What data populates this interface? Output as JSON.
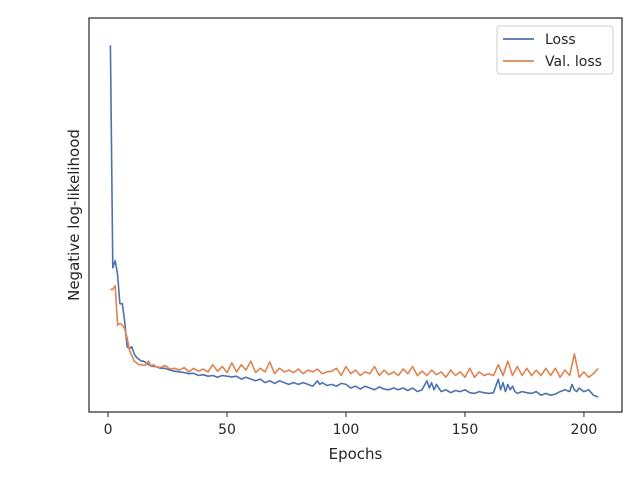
{
  "chart_data": {
    "type": "line",
    "title": "",
    "xlabel": "Epochs",
    "ylabel": "Negative log-likelihood",
    "xlim": [
      -8,
      216
    ],
    "ylim": [
      0.0,
      1.0
    ],
    "y_ticks_shown": false,
    "x_ticks": [
      0,
      50,
      100,
      150,
      200
    ],
    "grid": false,
    "legend_position": "top-right",
    "series": [
      {
        "name": "Loss",
        "color": "#4c72b0",
        "x": [
          1,
          2,
          3,
          4,
          5,
          6,
          7,
          8,
          9,
          10,
          11,
          12,
          13,
          14,
          15,
          16,
          17,
          18,
          19,
          20,
          22,
          24,
          26,
          28,
          30,
          32,
          34,
          36,
          38,
          40,
          42,
          44,
          46,
          48,
          50,
          52,
          54,
          56,
          58,
          60,
          62,
          64,
          66,
          68,
          70,
          72,
          74,
          76,
          78,
          80,
          82,
          84,
          86,
          88,
          89,
          90,
          92,
          94,
          96,
          98,
          100,
          102,
          104,
          106,
          108,
          110,
          112,
          114,
          116,
          118,
          120,
          122,
          124,
          126,
          128,
          130,
          132,
          134,
          135,
          136,
          137,
          138,
          140,
          142,
          144,
          146,
          148,
          150,
          152,
          154,
          156,
          158,
          160,
          162,
          164,
          165,
          166,
          167,
          168,
          169,
          170,
          171,
          172,
          174,
          176,
          178,
          180,
          182,
          184,
          186,
          188,
          190,
          192,
          194,
          195,
          196,
          197,
          198,
          200,
          202,
          204,
          206
        ],
        "y": [
          0.98,
          0.36,
          0.38,
          0.34,
          0.26,
          0.26,
          0.21,
          0.14,
          0.135,
          0.14,
          0.12,
          0.11,
          0.105,
          0.1,
          0.1,
          0.095,
          0.09,
          0.088,
          0.085,
          0.085,
          0.08,
          0.08,
          0.075,
          0.072,
          0.07,
          0.068,
          0.065,
          0.066,
          0.06,
          0.062,
          0.058,
          0.06,
          0.055,
          0.06,
          0.058,
          0.056,
          0.058,
          0.05,
          0.055,
          0.05,
          0.045,
          0.05,
          0.04,
          0.045,
          0.038,
          0.045,
          0.04,
          0.035,
          0.04,
          0.035,
          0.04,
          0.035,
          0.03,
          0.045,
          0.035,
          0.04,
          0.032,
          0.035,
          0.03,
          0.038,
          0.035,
          0.025,
          0.03,
          0.022,
          0.03,
          0.025,
          0.02,
          0.028,
          0.022,
          0.02,
          0.025,
          0.02,
          0.025,
          0.018,
          0.025,
          0.015,
          0.02,
          0.045,
          0.025,
          0.04,
          0.02,
          0.035,
          0.015,
          0.02,
          0.012,
          0.018,
          0.015,
          0.02,
          0.012,
          0.01,
          0.015,
          0.012,
          0.01,
          0.012,
          0.05,
          0.02,
          0.04,
          0.015,
          0.035,
          0.02,
          0.03,
          0.015,
          0.01,
          0.015,
          0.012,
          0.01,
          0.015,
          0.005,
          0.01,
          0.005,
          0.008,
          0.015,
          0.02,
          0.015,
          0.035,
          0.02,
          0.015,
          0.025,
          0.015,
          0.02,
          0.005,
          0.0
        ]
      },
      {
        "name": "Val. loss",
        "color": "#dd8452",
        "x": [
          1,
          2,
          3,
          4,
          5,
          6,
          7,
          8,
          9,
          10,
          11,
          12,
          13,
          14,
          15,
          16,
          17,
          18,
          19,
          20,
          22,
          24,
          26,
          28,
          30,
          32,
          34,
          36,
          38,
          40,
          42,
          44,
          46,
          48,
          50,
          52,
          54,
          56,
          58,
          60,
          62,
          64,
          66,
          68,
          70,
          72,
          74,
          76,
          78,
          80,
          82,
          84,
          86,
          88,
          90,
          92,
          94,
          96,
          98,
          100,
          102,
          104,
          106,
          108,
          110,
          112,
          114,
          116,
          118,
          120,
          122,
          124,
          126,
          128,
          130,
          132,
          134,
          136,
          138,
          140,
          142,
          144,
          146,
          148,
          150,
          152,
          154,
          156,
          158,
          160,
          162,
          164,
          166,
          168,
          170,
          172,
          174,
          176,
          178,
          180,
          182,
          184,
          186,
          188,
          190,
          192,
          194,
          196,
          198,
          200,
          202,
          204,
          206
        ],
        "y": [
          0.3,
          0.3,
          0.31,
          0.2,
          0.205,
          0.2,
          0.19,
          0.165,
          0.13,
          0.115,
          0.1,
          0.095,
          0.09,
          0.09,
          0.088,
          0.09,
          0.1,
          0.085,
          0.09,
          0.085,
          0.082,
          0.088,
          0.078,
          0.08,
          0.075,
          0.082,
          0.07,
          0.08,
          0.072,
          0.078,
          0.07,
          0.09,
          0.072,
          0.085,
          0.068,
          0.095,
          0.07,
          0.09,
          0.075,
          0.1,
          0.068,
          0.08,
          0.07,
          0.098,
          0.065,
          0.08,
          0.07,
          0.075,
          0.068,
          0.078,
          0.065,
          0.075,
          0.07,
          0.078,
          0.065,
          0.07,
          0.072,
          0.08,
          0.06,
          0.085,
          0.065,
          0.075,
          0.06,
          0.07,
          0.065,
          0.085,
          0.06,
          0.075,
          0.062,
          0.07,
          0.06,
          0.078,
          0.065,
          0.085,
          0.06,
          0.072,
          0.06,
          0.075,
          0.062,
          0.07,
          0.055,
          0.075,
          0.06,
          0.07,
          0.055,
          0.08,
          0.055,
          0.07,
          0.06,
          0.065,
          0.06,
          0.09,
          0.06,
          0.1,
          0.06,
          0.085,
          0.06,
          0.08,
          0.06,
          0.075,
          0.06,
          0.08,
          0.06,
          0.08,
          0.055,
          0.075,
          0.06,
          0.12,
          0.055,
          0.07,
          0.055,
          0.065,
          0.08
        ]
      }
    ]
  }
}
